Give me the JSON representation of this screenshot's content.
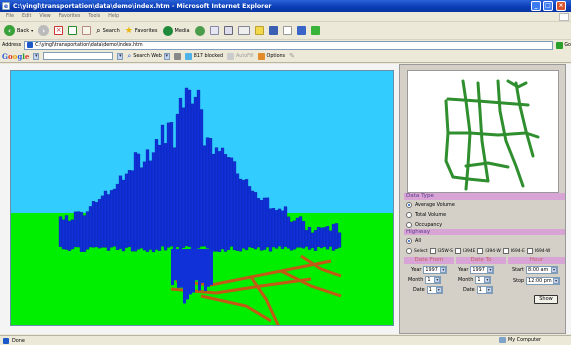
{
  "window": {
    "title": "C:\\yingl\\transportation\\data\\demo\\index.htm - Microsoft Internet Explorer"
  },
  "menu": [
    "File",
    "Edit",
    "View",
    "Favorites",
    "Tools",
    "Help"
  ],
  "toolbar": {
    "back": "Back",
    "search": "Search",
    "favorites": "Favorites",
    "media": "Media"
  },
  "address": {
    "label": "Address",
    "url": "C:\\yingl\\transportation\\data\\demo\\index.htm",
    "go": "Go"
  },
  "googlebar": {
    "logo": "Google",
    "search_web": "Search Web",
    "blocked": "817 blocked",
    "autofill": "AutoFill",
    "options": "Options"
  },
  "panel": {
    "data_type": {
      "heading": "Data Type",
      "options": [
        "Average Volume",
        "Total Volume",
        "Occupancy"
      ],
      "selected": "Average Volume"
    },
    "highway": {
      "heading": "Highway",
      "all_label": "All",
      "select_label": "Select",
      "checkboxes": [
        "I35W-S",
        "I394E",
        "I394-W",
        "I694-E",
        "I694-W"
      ]
    },
    "date_from": {
      "heading": "Date From",
      "year_label": "Year",
      "year": "1997",
      "month_label": "Month",
      "month": "1",
      "date_label": "Date",
      "date": "1"
    },
    "date_to": {
      "heading": "Date To",
      "year_label": "Year",
      "year": "1997",
      "month_label": "Month",
      "month": "1",
      "date_label": "Date",
      "date": "1"
    },
    "hour": {
      "heading": "Hour",
      "start_label": "Start",
      "start": "8:00 am",
      "stop_label": "Stop",
      "stop": "12:00 pm"
    },
    "show_button": "Show"
  },
  "status": {
    "text": "Done",
    "zone": "My Computer"
  },
  "colors": {
    "sky": "#33ccff",
    "ground": "#00ee00",
    "bars": "#1030d8",
    "roads": "#c05a14",
    "section_header": "#d8a4d6",
    "minimap_roads": "#2f8f2f"
  }
}
